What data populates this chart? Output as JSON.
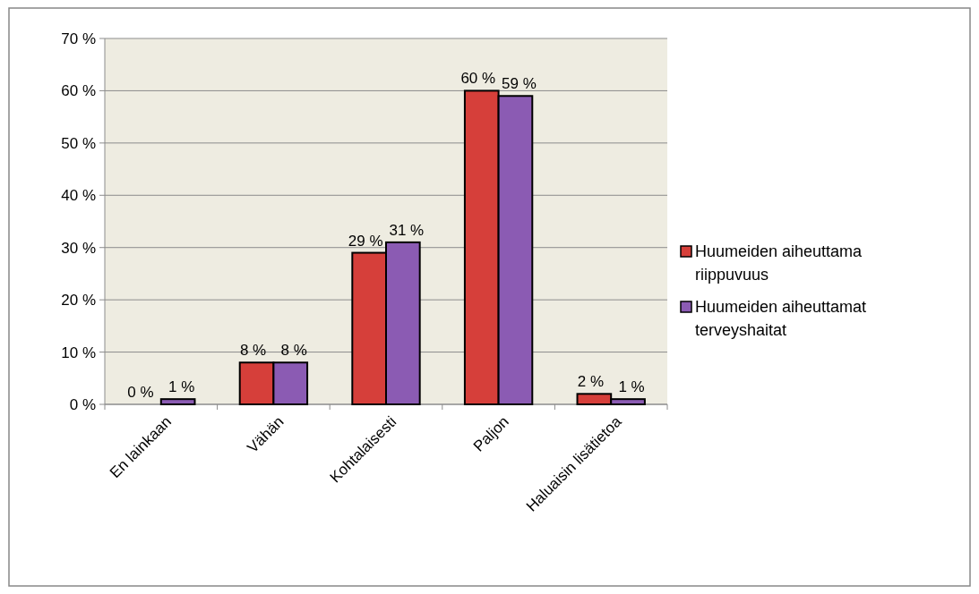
{
  "chart_data": {
    "type": "bar",
    "categories": [
      "En lainkaan",
      "Vähän",
      "Kohtalaisesti",
      "Paljon",
      "Haluaisin lisätietoa"
    ],
    "series": [
      {
        "name": "Huumeiden aiheuttama riippuvuus",
        "color": "#d63f3a",
        "values": [
          0,
          8,
          29,
          60,
          2
        ],
        "value_labels": [
          "0 %",
          "8 %",
          "29 %",
          "60 %",
          "2 %"
        ]
      },
      {
        "name": "Huumeiden aiheuttamat terveyshaitat",
        "color": "#8b5bb3",
        "values": [
          1,
          8,
          31,
          59,
          1
        ],
        "value_labels": [
          "1 %",
          "8 %",
          "31 %",
          "59 %",
          "1 %"
        ]
      }
    ],
    "ylim": [
      0,
      70
    ],
    "yticks": [
      {
        "value": 0,
        "label": "0 %"
      },
      {
        "value": 10,
        "label": "10 %"
      },
      {
        "value": 20,
        "label": "20 %"
      },
      {
        "value": 30,
        "label": "30 %"
      },
      {
        "value": 40,
        "label": "40 %"
      },
      {
        "value": 50,
        "label": "50 %"
      },
      {
        "value": 60,
        "label": "60 %"
      },
      {
        "value": 70,
        "label": "70 %"
      }
    ],
    "grid": "y",
    "legend": "right"
  }
}
